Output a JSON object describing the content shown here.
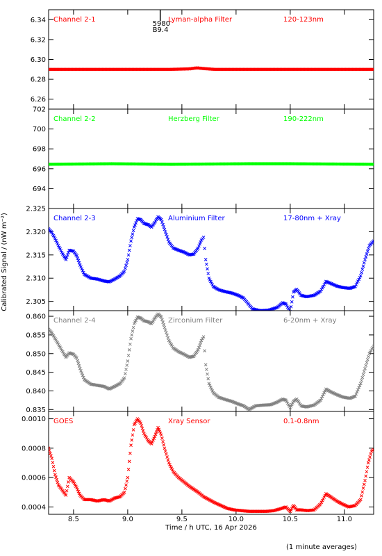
{
  "chart_data": {
    "type": "scatter",
    "xlabel": "Time / h UTC, 16 Apr 2026",
    "ylabel": "Calibrated Signal / (nW m⁻²)",
    "footnote": "(1 minute averages)",
    "xlim": [
      8.27,
      11.27
    ],
    "x_ticks": [
      "8.5",
      "9.0",
      "9.5",
      "10.0",
      "10.5",
      "11.0"
    ],
    "x_tick_values": [
      8.5,
      9.0,
      9.5,
      10.0,
      10.5,
      11.0
    ],
    "marker": "x",
    "annotation": {
      "x": 9.3,
      "lines": [
        "5980",
        "B9.4"
      ]
    },
    "panels": [
      {
        "channel": "Channel 2-1",
        "filter": "Lyman-alpha Filter",
        "band": "120-123nm",
        "color": "#ff0000",
        "ylim": [
          6.25,
          6.35
        ],
        "y_ticks": [
          "6.26",
          "6.28",
          "6.30",
          "6.32",
          "6.34"
        ],
        "y_tick_values": [
          6.26,
          6.28,
          6.3,
          6.32,
          6.34
        ],
        "points": [
          [
            8.27,
            6.29
          ],
          [
            8.5,
            6.29
          ],
          [
            9.0,
            6.29
          ],
          [
            9.4,
            6.29
          ],
          [
            9.57,
            6.2905
          ],
          [
            9.64,
            6.2915
          ],
          [
            9.7,
            6.2908
          ],
          [
            9.8,
            6.29
          ],
          [
            10.2,
            6.29
          ],
          [
            10.7,
            6.29
          ],
          [
            11.27,
            6.29
          ]
        ]
      },
      {
        "channel": "Channel 2-2",
        "filter": "Herzberg Filter",
        "band": "190-222nm",
        "color": "#00ff00",
        "ylim": [
          692.0,
          702.0
        ],
        "y_ticks": [
          "694",
          "696",
          "698",
          "700",
          "702"
        ],
        "y_tick_values": [
          694,
          696,
          698,
          700,
          702
        ],
        "points": [
          [
            8.27,
            696.45
          ],
          [
            8.85,
            696.5
          ],
          [
            9.4,
            696.45
          ],
          [
            10.1,
            696.5
          ],
          [
            10.5,
            696.5
          ],
          [
            11.27,
            696.45
          ]
        ]
      },
      {
        "channel": "Channel 2-3",
        "filter": "Aluminium Filter",
        "band": "17-80nm + Xray",
        "color": "#0000ff",
        "ylim": [
          2.303,
          2.325
        ],
        "y_ticks": [
          "2.305",
          "2.310",
          "2.315",
          "2.320",
          "2.325"
        ],
        "y_tick_values": [
          2.305,
          2.31,
          2.315,
          2.32,
          2.325
        ],
        "points": [
          [
            8.27,
            2.3206
          ],
          [
            8.3,
            2.3198
          ],
          [
            8.33,
            2.3185
          ],
          [
            8.36,
            2.317
          ],
          [
            8.4,
            2.3152
          ],
          [
            8.43,
            2.314
          ],
          [
            8.46,
            2.316
          ],
          [
            8.5,
            2.3158
          ],
          [
            8.53,
            2.3148
          ],
          [
            8.56,
            2.3128
          ],
          [
            8.6,
            2.3108
          ],
          [
            8.66,
            2.31
          ],
          [
            8.72,
            2.3098
          ],
          [
            8.78,
            2.3094
          ],
          [
            8.83,
            2.3092
          ],
          [
            8.88,
            2.3098
          ],
          [
            8.93,
            2.3105
          ],
          [
            8.97,
            2.3115
          ],
          [
            9.0,
            2.314
          ],
          [
            9.03,
            2.318
          ],
          [
            9.06,
            2.321
          ],
          [
            9.09,
            2.3228
          ],
          [
            9.12,
            2.3226
          ],
          [
            9.15,
            2.3218
          ],
          [
            9.19,
            2.3215
          ],
          [
            9.22,
            2.321
          ],
          [
            9.25,
            2.322
          ],
          [
            9.28,
            2.3232
          ],
          [
            9.31,
            2.3226
          ],
          [
            9.34,
            2.3205
          ],
          [
            9.38,
            2.3178
          ],
          [
            9.42,
            2.3165
          ],
          [
            9.47,
            2.316
          ],
          [
            9.52,
            2.3156
          ],
          [
            9.57,
            2.315
          ],
          [
            9.61,
            2.3152
          ],
          [
            9.65,
            2.3165
          ],
          [
            9.68,
            2.3182
          ],
          [
            9.7,
            2.3188
          ],
          [
            9.72,
            2.314
          ],
          [
            9.75,
            2.31
          ],
          [
            9.79,
            2.3082
          ],
          [
            9.84,
            2.3075
          ],
          [
            9.9,
            2.3071
          ],
          [
            9.96,
            2.3068
          ],
          [
            10.02,
            2.3063
          ],
          [
            10.07,
            2.3057
          ],
          [
            10.15,
            2.3034
          ],
          [
            10.22,
            2.303
          ],
          [
            10.3,
            2.3031
          ],
          [
            10.38,
            2.3037
          ],
          [
            10.43,
            2.3047
          ],
          [
            10.46,
            2.3044
          ],
          [
            10.5,
            2.3028
          ],
          [
            10.53,
            2.307
          ],
          [
            10.56,
            2.3076
          ],
          [
            10.6,
            2.3063
          ],
          [
            10.65,
            2.306
          ],
          [
            10.72,
            2.3063
          ],
          [
            10.78,
            2.3072
          ],
          [
            10.83,
            2.3093
          ],
          [
            10.87,
            2.3089
          ],
          [
            10.93,
            2.3083
          ],
          [
            10.98,
            2.308
          ],
          [
            11.05,
            2.3078
          ],
          [
            11.1,
            2.3082
          ],
          [
            11.15,
            2.3105
          ],
          [
            11.19,
            2.314
          ],
          [
            11.23,
            2.317
          ],
          [
            11.27,
            2.318
          ]
        ]
      },
      {
        "channel": "Channel 2-4",
        "filter": "Zirconium Filter",
        "band": "6-20nm + Xray",
        "color": "#808080",
        "ylim": [
          0.8345,
          0.8615
        ],
        "y_ticks": [
          "0.835",
          "0.840",
          "0.845",
          "0.850",
          "0.855",
          "0.860"
        ],
        "y_tick_values": [
          0.835,
          0.84,
          0.845,
          0.85,
          0.855,
          0.86
        ],
        "points": [
          [
            8.27,
            0.8565
          ],
          [
            8.3,
            0.8555
          ],
          [
            8.33,
            0.854
          ],
          [
            8.36,
            0.8525
          ],
          [
            8.4,
            0.8505
          ],
          [
            8.43,
            0.849
          ],
          [
            8.46,
            0.8502
          ],
          [
            8.5,
            0.8498
          ],
          [
            8.53,
            0.8488
          ],
          [
            8.56,
            0.846
          ],
          [
            8.6,
            0.843
          ],
          [
            8.66,
            0.8418
          ],
          [
            8.72,
            0.8415
          ],
          [
            8.78,
            0.8412
          ],
          [
            8.83,
            0.8405
          ],
          [
            8.88,
            0.8412
          ],
          [
            8.93,
            0.842
          ],
          [
            8.97,
            0.8435
          ],
          [
            9.0,
            0.848
          ],
          [
            9.03,
            0.854
          ],
          [
            9.06,
            0.858
          ],
          [
            9.09,
            0.8598
          ],
          [
            9.12,
            0.8595
          ],
          [
            9.15,
            0.8588
          ],
          [
            9.19,
            0.8585
          ],
          [
            9.22,
            0.858
          ],
          [
            9.25,
            0.8595
          ],
          [
            9.28,
            0.8606
          ],
          [
            9.31,
            0.8598
          ],
          [
            9.34,
            0.857
          ],
          [
            9.38,
            0.8535
          ],
          [
            9.42,
            0.8515
          ],
          [
            9.47,
            0.8505
          ],
          [
            9.52,
            0.8498
          ],
          [
            9.57,
            0.849
          ],
          [
            9.61,
            0.8493
          ],
          [
            9.65,
            0.851
          ],
          [
            9.68,
            0.8535
          ],
          [
            9.7,
            0.8545
          ],
          [
            9.72,
            0.847
          ],
          [
            9.75,
            0.842
          ],
          [
            9.79,
            0.8395
          ],
          [
            9.84,
            0.8383
          ],
          [
            9.9,
            0.8377
          ],
          [
            9.96,
            0.8372
          ],
          [
            10.02,
            0.8365
          ],
          [
            10.07,
            0.836
          ],
          [
            10.12,
            0.835
          ],
          [
            10.18,
            0.836
          ],
          [
            10.25,
            0.8362
          ],
          [
            10.32,
            0.8363
          ],
          [
            10.38,
            0.837
          ],
          [
            10.43,
            0.8378
          ],
          [
            10.46,
            0.8375
          ],
          [
            10.5,
            0.8355
          ],
          [
            10.53,
            0.8372
          ],
          [
            10.56,
            0.8378
          ],
          [
            10.6,
            0.836
          ],
          [
            10.65,
            0.8357
          ],
          [
            10.72,
            0.8362
          ],
          [
            10.78,
            0.8375
          ],
          [
            10.83,
            0.8405
          ],
          [
            10.87,
            0.8398
          ],
          [
            10.93,
            0.839
          ],
          [
            10.98,
            0.8384
          ],
          [
            11.05,
            0.838
          ],
          [
            11.1,
            0.8386
          ],
          [
            11.15,
            0.842
          ],
          [
            11.19,
            0.846
          ],
          [
            11.23,
            0.85
          ],
          [
            11.27,
            0.852
          ]
        ]
      },
      {
        "channel": "GOES",
        "filter": "Xray Sensor",
        "band": "0.1-0.8nm",
        "color": "#ff0000",
        "ylim": [
          0.00035,
          0.00105
        ],
        "y_ticks": [
          "0.0004",
          "0.0006",
          "0.0008",
          "0.0010"
        ],
        "y_tick_values": [
          0.0004,
          0.0006,
          0.0008,
          0.001
        ],
        "points": [
          [
            8.27,
            0.0008
          ],
          [
            8.3,
            0.00073
          ],
          [
            8.33,
            0.00062
          ],
          [
            8.36,
            0.00055
          ],
          [
            8.4,
            0.00051
          ],
          [
            8.43,
            0.00048
          ],
          [
            8.46,
            0.0006
          ],
          [
            8.5,
            0.00057
          ],
          [
            8.53,
            0.00053
          ],
          [
            8.56,
            0.00048
          ],
          [
            8.6,
            0.00045
          ],
          [
            8.66,
            0.00045
          ],
          [
            8.72,
            0.00044
          ],
          [
            8.78,
            0.00045
          ],
          [
            8.83,
            0.00044
          ],
          [
            8.88,
            0.00046
          ],
          [
            8.93,
            0.00047
          ],
          [
            8.97,
            0.0005
          ],
          [
            9.0,
            0.0006
          ],
          [
            9.03,
            0.00082
          ],
          [
            9.06,
            0.00096
          ],
          [
            9.09,
            0.001
          ],
          [
            9.12,
            0.00097
          ],
          [
            9.15,
            0.0009
          ],
          [
            9.19,
            0.00085
          ],
          [
            9.22,
            0.00083
          ],
          [
            9.25,
            0.00088
          ],
          [
            9.28,
            0.00094
          ],
          [
            9.31,
            0.00089
          ],
          [
            9.34,
            0.0008
          ],
          [
            9.38,
            0.0007
          ],
          [
            9.42,
            0.00064
          ],
          [
            9.47,
            0.0006
          ],
          [
            9.52,
            0.00057
          ],
          [
            9.57,
            0.00054
          ],
          [
            9.61,
            0.00052
          ],
          [
            9.65,
            0.0005
          ],
          [
            9.7,
            0.00047
          ],
          [
            9.75,
            0.00045
          ],
          [
            9.8,
            0.00043
          ],
          [
            9.86,
            0.00041
          ],
          [
            9.92,
            0.00039
          ],
          [
            9.98,
            0.00038
          ],
          [
            10.05,
            0.000375
          ],
          [
            10.12,
            0.00037
          ],
          [
            10.2,
            0.00037
          ],
          [
            10.28,
            0.00037
          ],
          [
            10.35,
            0.000375
          ],
          [
            10.42,
            0.00039
          ],
          [
            10.46,
            0.0004
          ],
          [
            10.5,
            0.00037
          ],
          [
            10.53,
            0.00041
          ],
          [
            10.56,
            0.00038
          ],
          [
            10.6,
            0.00038
          ],
          [
            10.66,
            0.000375
          ],
          [
            10.72,
            0.00038
          ],
          [
            10.78,
            0.00042
          ],
          [
            10.83,
            0.00049
          ],
          [
            10.87,
            0.00047
          ],
          [
            10.93,
            0.00044
          ],
          [
            10.98,
            0.00042
          ],
          [
            11.04,
            0.0004
          ],
          [
            11.1,
            0.00041
          ],
          [
            11.15,
            0.00045
          ],
          [
            11.19,
            0.00058
          ],
          [
            11.22,
            0.0007
          ],
          [
            11.25,
            0.00078
          ],
          [
            11.27,
            0.00079
          ]
        ]
      }
    ]
  }
}
